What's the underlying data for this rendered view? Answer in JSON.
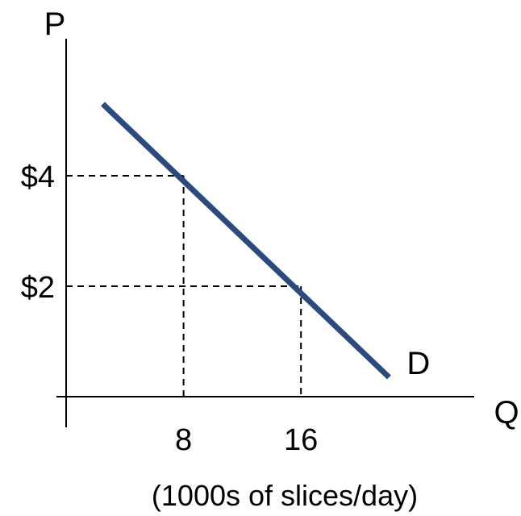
{
  "chart_data": {
    "type": "line",
    "title": "",
    "xlabel": "Q",
    "ylabel": "P",
    "x_unit_label": "(1000s of slices/day)",
    "series": [
      {
        "name": "D",
        "x": [
          2.5,
          22
        ],
        "y": [
          5.3,
          0.35
        ]
      }
    ],
    "reference_points": [
      {
        "x": 8,
        "y": 4
      },
      {
        "x": 16,
        "y": 2
      }
    ],
    "x_ticks": [
      {
        "value": 8,
        "label": "8"
      },
      {
        "value": 16,
        "label": "16"
      }
    ],
    "y_ticks": [
      {
        "value": 4,
        "label": "$4"
      },
      {
        "value": 2,
        "label": "$2"
      }
    ],
    "grid": false,
    "line_color": "#2b4a7e"
  }
}
